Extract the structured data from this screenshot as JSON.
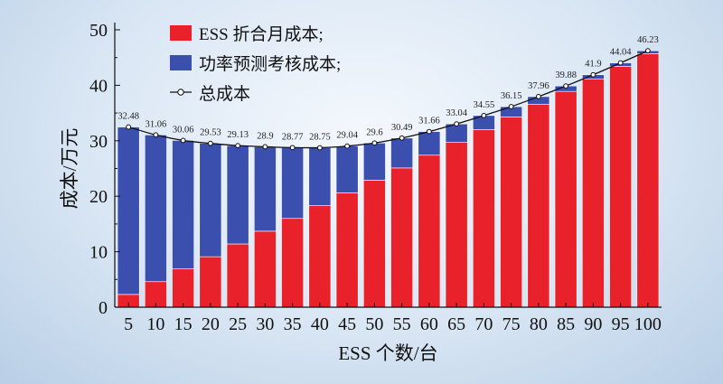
{
  "chart_data": {
    "type": "bar",
    "stacked": true,
    "xlabel": "ESS 个数/台",
    "ylabel": "成本/万元",
    "ylim": [
      0,
      50
    ],
    "yticks": [
      0,
      10,
      20,
      30,
      40,
      50
    ],
    "categories": [
      "5",
      "10",
      "15",
      "20",
      "25",
      "30",
      "35",
      "40",
      "45",
      "50",
      "55",
      "60",
      "65",
      "70",
      "75",
      "80",
      "85",
      "90",
      "95",
      "100"
    ],
    "series": [
      {
        "name": "ESS 折合月成本;",
        "color": "#e8212a",
        "values": [
          2.3,
          4.6,
          6.9,
          9.1,
          11.4,
          13.7,
          16.0,
          18.3,
          20.6,
          22.9,
          25.1,
          27.4,
          29.7,
          32.0,
          34.3,
          36.6,
          38.9,
          41.1,
          43.4,
          45.7
        ]
      },
      {
        "name": "功率预测考核成本;",
        "color": "#3a4fae",
        "values": [
          30.18,
          26.46,
          23.16,
          20.43,
          17.73,
          15.22,
          12.77,
          10.45,
          8.44,
          6.7,
          5.39,
          4.26,
          3.34,
          2.55,
          1.85,
          1.36,
          0.98,
          0.8,
          0.64,
          0.53
        ]
      }
    ],
    "line": {
      "name": "总成本",
      "values": [
        32.48,
        31.06,
        30.06,
        29.53,
        29.13,
        28.92,
        28.77,
        28.75,
        29.04,
        29.6,
        30.49,
        31.66,
        33.04,
        34.55,
        36.15,
        37.96,
        39.88,
        41.9,
        44.04,
        46.23
      ],
      "labels": [
        "32.48",
        "31.06",
        "30.06",
        "29.53",
        "29.13",
        "28.9",
        "28.77",
        "28.75",
        "29.04",
        "29.6",
        "30.49",
        "31.66",
        "33.04",
        "34.55",
        "36.15",
        "37.96",
        "39.88",
        "41.9",
        "44.04",
        "46.23"
      ]
    },
    "legend_position": "top-left",
    "grid": false
  }
}
